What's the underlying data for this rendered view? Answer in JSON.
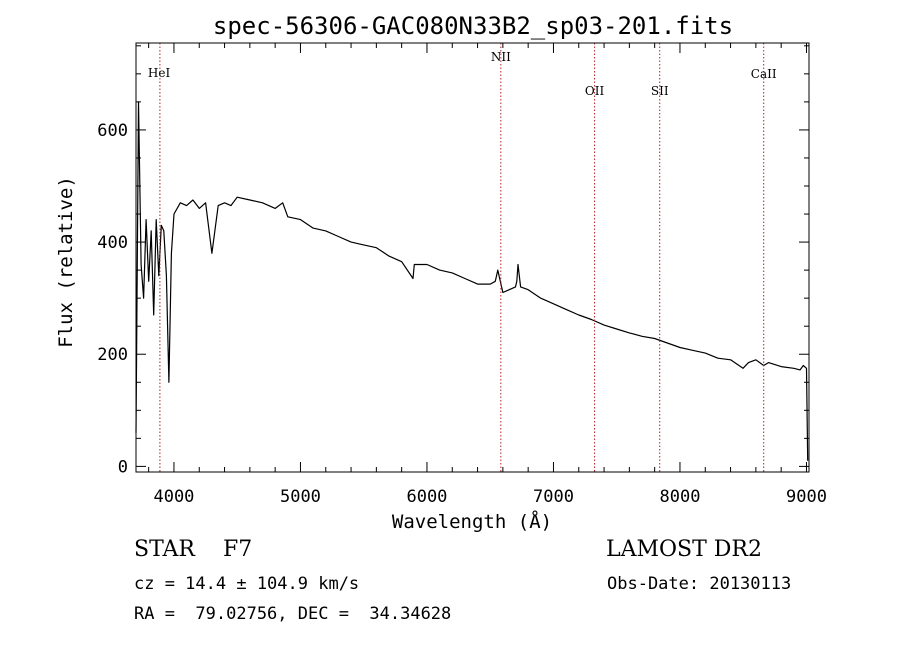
{
  "chart_data": {
    "type": "line",
    "title": "spec-56306-GAC080N33B2_sp03-201.fits",
    "xlabel": "Wavelength (Å)",
    "ylabel": "Flux (relative)",
    "xlim": [
      3700,
      9020
    ],
    "ylim": [
      -10,
      755
    ],
    "xticks": [
      4000,
      5000,
      6000,
      7000,
      8000,
      9000
    ],
    "yticks": [
      0,
      200,
      400,
      600
    ],
    "grid": false,
    "line_color": "#000000",
    "marker_color": "#b22222",
    "spectral_lines": [
      {
        "label": "HeI",
        "wavelength": 3889
      },
      {
        "label": "NII",
        "wavelength": 6584
      },
      {
        "label": "OII",
        "wavelength": 7325
      },
      {
        "label": "SII",
        "wavelength": 7840
      },
      {
        "label": "CaII",
        "wavelength": 8662
      }
    ],
    "series": [
      {
        "x": [
          3700,
          3720,
          3740,
          3760,
          3780,
          3800,
          3820,
          3840,
          3860,
          3880,
          3900,
          3920,
          3940,
          3960,
          3980,
          4000,
          4050,
          4100,
          4150,
          4200,
          4250,
          4300,
          4350,
          4400,
          4450,
          4500,
          4600,
          4700,
          4800,
          4860,
          4900,
          5000,
          5100,
          5200,
          5300,
          5400,
          5500,
          5600,
          5700,
          5800,
          5890,
          5900,
          6000,
          6100,
          6200,
          6300,
          6400,
          6500,
          6540,
          6560,
          6580,
          6600,
          6650,
          6700,
          6710,
          6720,
          6740,
          6800,
          6900,
          7000,
          7100,
          7200,
          7300,
          7400,
          7500,
          7600,
          7700,
          7800,
          7900,
          8000,
          8100,
          8200,
          8300,
          8400,
          8498,
          8542,
          8600,
          8662,
          8700,
          8800,
          8900,
          8950,
          8975,
          9000,
          9010
        ],
        "y": [
          60,
          650,
          360,
          300,
          440,
          330,
          420,
          270,
          440,
          340,
          430,
          420,
          340,
          150,
          380,
          450,
          470,
          465,
          475,
          460,
          470,
          380,
          465,
          470,
          465,
          480,
          475,
          470,
          460,
          470,
          445,
          440,
          425,
          420,
          410,
          400,
          395,
          390,
          375,
          365,
          335,
          360,
          360,
          350,
          345,
          335,
          325,
          325,
          330,
          350,
          330,
          310,
          315,
          320,
          330,
          360,
          320,
          315,
          300,
          290,
          280,
          270,
          262,
          252,
          245,
          238,
          232,
          228,
          220,
          212,
          207,
          202,
          193,
          190,
          175,
          185,
          190,
          180,
          185,
          178,
          175,
          172,
          180,
          175,
          10
        ]
      }
    ]
  },
  "info": {
    "class_line": "STAR    F7",
    "survey": "LAMOST DR2",
    "cz_line": "cz = 14.4 ± 104.9 km/s",
    "obs_date_line": "Obs-Date: 20130113",
    "radec_line": "RA =  79.02756, DEC =  34.34628"
  }
}
